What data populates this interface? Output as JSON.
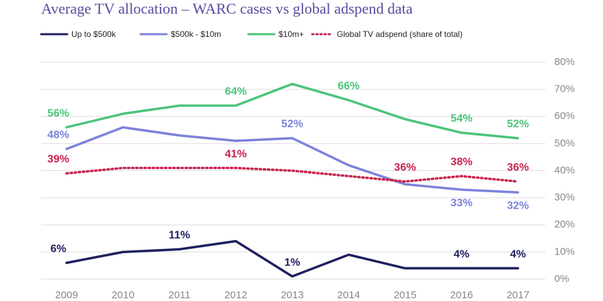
{
  "chart_data": {
    "type": "line",
    "title": "Average TV allocation – WARC cases vs global adspend data",
    "categories": [
      "2009",
      "2010",
      "2011",
      "2012",
      "2013",
      "2014",
      "2015",
      "2016",
      "2017"
    ],
    "series": [
      {
        "name": "Up to $500k",
        "color": "#1f2060",
        "dash": "solid",
        "values": [
          6,
          10,
          11,
          14,
          1,
          9,
          4,
          4,
          4
        ],
        "value_labels": [
          "6%",
          null,
          "11%",
          null,
          "1%",
          null,
          null,
          "4%",
          "4%"
        ]
      },
      {
        "name": "$500k - $10m",
        "color": "#7b83d9",
        "dash": "solid",
        "values": [
          48,
          56,
          53,
          51,
          52,
          42,
          35,
          33,
          32
        ],
        "value_labels": [
          "48%",
          null,
          null,
          null,
          "52%",
          null,
          null,
          "33%",
          "32%"
        ]
      },
      {
        "name": "$10m+",
        "color": "#4cc47a",
        "dash": "solid",
        "values": [
          56,
          61,
          64,
          64,
          72,
          66,
          59,
          54,
          52
        ],
        "value_labels": [
          "56%",
          null,
          null,
          "64%",
          null,
          "66%",
          null,
          "54%",
          "52%"
        ]
      },
      {
        "name": "Global TV adspend (share of total)",
        "color": "#c8234e",
        "dash": "dotted",
        "values": [
          39,
          41,
          41,
          41,
          40,
          38,
          36,
          38,
          36
        ],
        "value_labels": [
          "39%",
          null,
          null,
          "41%",
          null,
          null,
          "36%",
          "38%",
          "36%"
        ]
      }
    ],
    "ylim": [
      0,
      80
    ],
    "yticks": [
      {
        "value": 0,
        "label": "0%"
      },
      {
        "value": 10,
        "label": "10%"
      },
      {
        "value": 20,
        "label": "20%"
      },
      {
        "value": 30,
        "label": "30%"
      },
      {
        "value": 40,
        "label": "40%"
      },
      {
        "value": 50,
        "label": "50%"
      },
      {
        "value": 60,
        "label": "60%"
      },
      {
        "value": 70,
        "label": "70%"
      },
      {
        "value": 80,
        "label": "80%"
      }
    ],
    "grid": true
  }
}
